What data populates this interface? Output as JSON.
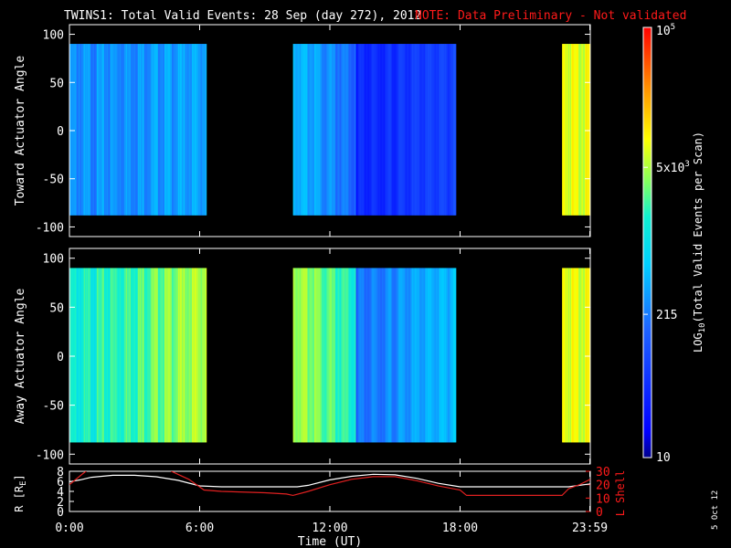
{
  "header": {
    "title": "TWINS1: Total Valid Events: 28 Sep (day 272), 2012",
    "note": "NOTE: Data Preliminary - Not validated"
  },
  "footer": {
    "date_stamp": "5 Oct 12"
  },
  "colors": {
    "background": "#000000",
    "axis": "#ffffff",
    "note": "#ff1a1a",
    "r_line": "#ffffff",
    "lshell_line": "#e02020"
  },
  "colorbar": {
    "label": "LOG10(Total Valid Events per Scan)",
    "label_prefix": "LOG",
    "label_sub": "10",
    "label_suffix": "(Total Valid Events per Scan)",
    "ticks": [
      {
        "value": 10,
        "text": "10"
      },
      {
        "value": 215,
        "text": "215"
      },
      {
        "value": 5000,
        "base": "5x10",
        "exp": "3"
      },
      {
        "value": 100000,
        "base": "10",
        "exp": "5"
      }
    ],
    "scale": "log",
    "range": [
      10,
      100000
    ]
  },
  "chart_data": [
    {
      "type": "heatmap",
      "panel": "toward",
      "ylabel": "Toward Actuator Angle",
      "ylim": [
        -110,
        110
      ],
      "yticks": [
        100,
        50,
        0,
        -50,
        -100
      ],
      "ytick_labels": [
        "100",
        "50",
        "0",
        "-50",
        "-100"
      ],
      "xlim_hours": [
        0,
        24
      ],
      "angle_range": [
        -88,
        90
      ],
      "segments": [
        {
          "start_hour": 0.0,
          "end_hour": 6.3,
          "start_value": 300,
          "end_value": 420
        },
        {
          "start_hour": 10.3,
          "end_hour": 13.2,
          "start_value": 600,
          "end_value": 180
        },
        {
          "start_hour": 13.2,
          "end_hour": 17.8,
          "start_value": 45,
          "end_value": 90
        },
        {
          "start_hour": 22.7,
          "end_hour": 24.0,
          "start_value": 9000,
          "end_value": 9000
        }
      ]
    },
    {
      "type": "heatmap",
      "panel": "away",
      "ylabel": "Away Actuator Angle",
      "ylim": [
        -110,
        110
      ],
      "yticks": [
        100,
        50,
        0,
        -50,
        -100
      ],
      "ytick_labels": [
        "100",
        "50",
        "0",
        "-50",
        "-100"
      ],
      "xlim_hours": [
        0,
        24
      ],
      "angle_range": [
        -88,
        90
      ],
      "segments": [
        {
          "start_hour": 0.0,
          "end_hour": 6.3,
          "start_value": 1500,
          "end_value": 6000
        },
        {
          "start_hour": 10.3,
          "end_hour": 13.2,
          "start_value": 6000,
          "end_value": 1800
        },
        {
          "start_hour": 13.2,
          "end_hour": 17.8,
          "start_value": 200,
          "end_value": 600
        },
        {
          "start_hour": 22.7,
          "end_hour": 24.0,
          "start_value": 9000,
          "end_value": 9000
        }
      ]
    },
    {
      "type": "line",
      "panel": "orbit",
      "xlabel": "Time (UT)",
      "xtick_labels": [
        "0:00",
        "6:00",
        "12:00",
        "18:00",
        "23:59"
      ],
      "xticks_hours": [
        0,
        6,
        12,
        18,
        23.98
      ],
      "ylabel_left": "R [RE]",
      "ylabel_left_main": "R [R",
      "ylabel_left_sub": "E",
      "ylabel_left_end": "]",
      "ylim_left": [
        0,
        8
      ],
      "yticks_left": [
        "0",
        "2",
        "4",
        "6",
        "8"
      ],
      "ylabel_right": "L Shell",
      "ylim_right": [
        0,
        30
      ],
      "yticks_right": [
        "0",
        "10",
        "20",
        "30"
      ],
      "series": [
        {
          "axis": "left",
          "hours": [
            0,
            0.5,
            1,
            2,
            3,
            4,
            5,
            6,
            7,
            8,
            9,
            10,
            10.5,
            11,
            12,
            13,
            14,
            15,
            16,
            17,
            18,
            19,
            20,
            21,
            22,
            23,
            24
          ],
          "values": [
            5.9,
            6.3,
            6.8,
            7.2,
            7.2,
            6.9,
            6.2,
            5.1,
            4.9,
            4.9,
            4.9,
            4.9,
            4.9,
            5.2,
            6.3,
            7.0,
            7.4,
            7.3,
            6.6,
            5.6,
            4.9,
            4.9,
            4.9,
            4.9,
            4.9,
            4.9,
            5.5
          ]
        },
        {
          "axis": "right",
          "hours": [
            0,
            0.6,
            1,
            1.6,
            4.3,
            4.7,
            5.5,
            6.2,
            7,
            9,
            10,
            10.3,
            11,
            12,
            13,
            14,
            15,
            16,
            17,
            18,
            18.3,
            19,
            21,
            22.7,
            23,
            23.5,
            24
          ],
          "values": [
            20,
            28,
            33,
            40,
            40,
            30,
            24,
            16,
            15,
            14,
            13,
            12,
            15,
            20,
            24,
            26,
            26,
            23,
            19,
            16,
            12,
            12,
            12,
            12,
            17,
            20,
            24
          ]
        }
      ]
    }
  ]
}
